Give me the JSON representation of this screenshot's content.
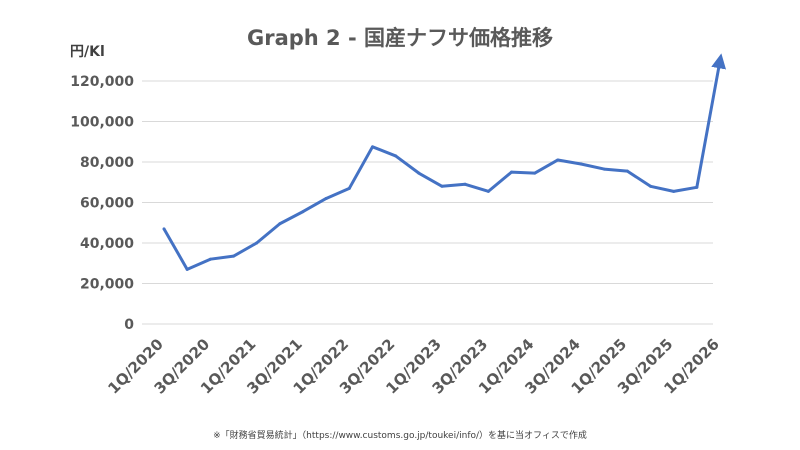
{
  "chart_data": {
    "type": "line",
    "title": "Graph 2 - 国産ナフサ価格推移",
    "ylabel": "円/Kl",
    "ylim": [
      0,
      120000
    ],
    "y_ticks": [
      "0",
      "20,000",
      "40,000",
      "60,000",
      "80,000",
      "100,000",
      "120,000"
    ],
    "x_tick_labels": [
      "1Q/2020",
      "3Q/2020",
      "1Q/2021",
      "3Q/2021",
      "1Q/2022",
      "3Q/2022",
      "1Q/2023",
      "3Q/2023",
      "1Q/2024",
      "3Q/2024",
      "1Q/2025",
      "3Q/2025",
      "1Q/2026"
    ],
    "categories": [
      "1Q/2020",
      "2Q/2020",
      "3Q/2020",
      "4Q/2020",
      "1Q/2021",
      "2Q/2021",
      "3Q/2021",
      "4Q/2021",
      "1Q/2022",
      "2Q/2022",
      "3Q/2022",
      "4Q/2022",
      "1Q/2023",
      "2Q/2023",
      "3Q/2023",
      "4Q/2023",
      "1Q/2024",
      "2Q/2024",
      "3Q/2024",
      "4Q/2024",
      "1Q/2025",
      "2Q/2025",
      "3Q/2025",
      "4Q/2025",
      "1Q/2026"
    ],
    "series": [
      {
        "color": "#4472c4",
        "values": [
          47000,
          27000,
          32000,
          33500,
          40000,
          49500,
          55500,
          62000,
          67000,
          87500,
          83000,
          74500,
          68000,
          69000,
          65500,
          75000,
          74500,
          81000,
          79000,
          76500,
          75500,
          68000,
          65500,
          67500,
          130000
        ],
        "end_marker": "arrow"
      }
    ],
    "grid": "horizontal",
    "legend": "none"
  },
  "footnote": "※「財務省貿易統計」（https://www.customs.go.jp/toukei/info/）を基に当オフィスで作成"
}
